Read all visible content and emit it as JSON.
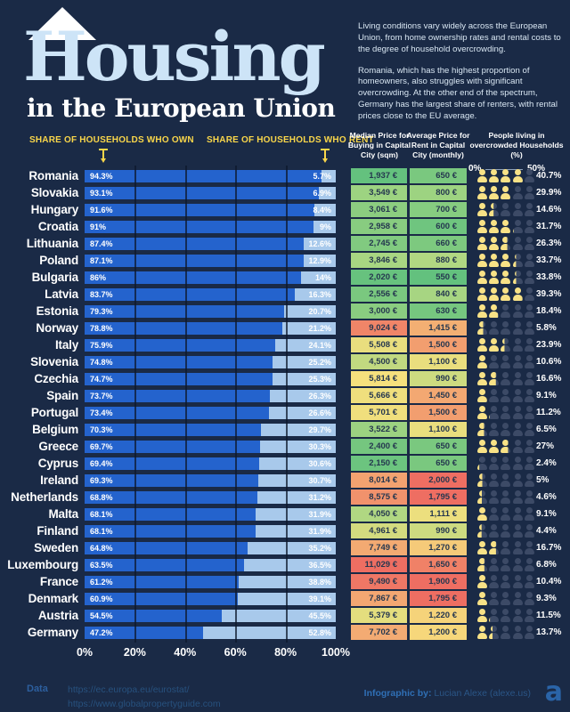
{
  "title": {
    "main": "Housing",
    "subtitle": "in the European Union"
  },
  "intro": {
    "p1": "Living conditions vary widely across the European Union, from home ownership rates and rental costs to the degree of household overcrowding.",
    "p2": "Romania, which has the highest proportion of homeowners, also struggles with significant overcrowding. At the other end of the spectrum, Germany has the largest share of renters, with rental prices close to the EU average."
  },
  "share_labels": {
    "own_pre": "SHARE OF HOUSEHOLDS WHO ",
    "own_bold": "OWN",
    "rent_pre": "SHARE OF HOUSEHOLDS WHO ",
    "rent_bold": "RENT"
  },
  "columns": {
    "buy": {
      "pre": "Median Price for ",
      "bold": "Buying",
      "post": " in Capital City (sqm)"
    },
    "rent": {
      "pre": "Average Price for ",
      "bold": "Rent",
      "post": " in Capital City (monthly)"
    },
    "overcrowded": {
      "label": "People living in overcrowded Households (%)",
      "scale_min": "0%",
      "scale_max": "50%"
    }
  },
  "chart_data": {
    "type": "bar",
    "orientation": "horizontal",
    "stacked": true,
    "series_labels": [
      "Own",
      "Rent"
    ],
    "x_ticks": [
      "0%",
      "20%",
      "40%",
      "60%",
      "80%",
      "100%"
    ],
    "xlim": [
      0,
      100
    ],
    "overcrowded_scale": [
      0,
      50
    ],
    "countries": [
      {
        "name": "Romania",
        "own": 94.3,
        "own_label": "94.3%",
        "rent": 5.7,
        "rent_label": "5.7%",
        "buy": "1,937 €",
        "buy_value": 1937,
        "rent_price": "650 €",
        "rent_price_value": 650,
        "overcrowded": 40.7,
        "overcrowded_label": "40.7%"
      },
      {
        "name": "Slovakia",
        "own": 93.1,
        "own_label": "93.1%",
        "rent": 6.9,
        "rent_label": "6.9%",
        "buy": "3,549 €",
        "buy_value": 3549,
        "rent_price": "800 €",
        "rent_price_value": 800,
        "overcrowded": 29.9,
        "overcrowded_label": "29.9%"
      },
      {
        "name": "Hungary",
        "own": 91.6,
        "own_label": "91.6%",
        "rent": 8.4,
        "rent_label": "8.4%",
        "buy": "3,061 €",
        "buy_value": 3061,
        "rent_price": "700 €",
        "rent_price_value": 700,
        "overcrowded": 14.6,
        "overcrowded_label": "14.6%"
      },
      {
        "name": "Croatia",
        "own": 91,
        "own_label": "91%",
        "rent": 9,
        "rent_label": "9%",
        "buy": "2,958 €",
        "buy_value": 2958,
        "rent_price": "600 €",
        "rent_price_value": 600,
        "overcrowded": 31.7,
        "overcrowded_label": "31.7%"
      },
      {
        "name": "Lithuania",
        "own": 87.4,
        "own_label": "87.4%",
        "rent": 12.6,
        "rent_label": "12.6%",
        "buy": "2,745 €",
        "buy_value": 2745,
        "rent_price": "660 €",
        "rent_price_value": 660,
        "overcrowded": 26.3,
        "overcrowded_label": "26.3%"
      },
      {
        "name": "Poland",
        "own": 87.1,
        "own_label": "87.1%",
        "rent": 12.9,
        "rent_label": "12.9%",
        "buy": "3,846 €",
        "buy_value": 3846,
        "rent_price": "880 €",
        "rent_price_value": 880,
        "overcrowded": 33.7,
        "overcrowded_label": "33.7%"
      },
      {
        "name": "Bulgaria",
        "own": 86,
        "own_label": "86%",
        "rent": 14,
        "rent_label": "14%",
        "buy": "2,020 €",
        "buy_value": 2020,
        "rent_price": "550 €",
        "rent_price_value": 550,
        "overcrowded": 33.8,
        "overcrowded_label": "33.8%"
      },
      {
        "name": "Latvia",
        "own": 83.7,
        "own_label": "83.7%",
        "rent": 16.3,
        "rent_label": "16.3%",
        "buy": "2,556 €",
        "buy_value": 2556,
        "rent_price": "840 €",
        "rent_price_value": 840,
        "overcrowded": 39.3,
        "overcrowded_label": "39.3%"
      },
      {
        "name": "Estonia",
        "own": 79.3,
        "own_label": "79.3%",
        "rent": 20.7,
        "rent_label": "20.7%",
        "buy": "3,000 €",
        "buy_value": 3000,
        "rent_price": "630 €",
        "rent_price_value": 630,
        "overcrowded": 18.4,
        "overcrowded_label": "18.4%"
      },
      {
        "name": "Norway",
        "own": 78.8,
        "own_label": "78.8%",
        "rent": 21.2,
        "rent_label": "21.2%",
        "buy": "9,024 €",
        "buy_value": 9024,
        "rent_price": "1,415 €",
        "rent_price_value": 1415,
        "overcrowded": 5.8,
        "overcrowded_label": "5.8%"
      },
      {
        "name": "Italy",
        "own": 75.9,
        "own_label": "75.9%",
        "rent": 24.1,
        "rent_label": "24.1%",
        "buy": "5,508 €",
        "buy_value": 5508,
        "rent_price": "1,500 €",
        "rent_price_value": 1500,
        "overcrowded": 23.9,
        "overcrowded_label": "23.9%"
      },
      {
        "name": "Slovenia",
        "own": 74.8,
        "own_label": "74.8%",
        "rent": 25.2,
        "rent_label": "25.2%",
        "buy": "4,500 €",
        "buy_value": 4500,
        "rent_price": "1,100 €",
        "rent_price_value": 1100,
        "overcrowded": 10.6,
        "overcrowded_label": "10.6%"
      },
      {
        "name": "Czechia",
        "own": 74.7,
        "own_label": "74.7%",
        "rent": 25.3,
        "rent_label": "25.3%",
        "buy": "5,814 €",
        "buy_value": 5814,
        "rent_price": "990 €",
        "rent_price_value": 990,
        "overcrowded": 16.6,
        "overcrowded_label": "16.6%"
      },
      {
        "name": "Spain",
        "own": 73.7,
        "own_label": "73.7%",
        "rent": 26.3,
        "rent_label": "26.3%",
        "buy": "5,666 €",
        "buy_value": 5666,
        "rent_price": "1,450 €",
        "rent_price_value": 1450,
        "overcrowded": 9.1,
        "overcrowded_label": "9.1%"
      },
      {
        "name": "Portugal",
        "own": 73.4,
        "own_label": "73.4%",
        "rent": 26.6,
        "rent_label": "26.6%",
        "buy": "5,701 €",
        "buy_value": 5701,
        "rent_price": "1,500 €",
        "rent_price_value": 1500,
        "overcrowded": 11.2,
        "overcrowded_label": "11.2%"
      },
      {
        "name": "Belgium",
        "own": 70.3,
        "own_label": "70.3%",
        "rent": 29.7,
        "rent_label": "29.7%",
        "buy": "3,522 €",
        "buy_value": 3522,
        "rent_price": "1,100 €",
        "rent_price_value": 1100,
        "overcrowded": 6.5,
        "overcrowded_label": "6.5%"
      },
      {
        "name": "Greece",
        "own": 69.7,
        "own_label": "69.7%",
        "rent": 30.3,
        "rent_label": "30.3%",
        "buy": "2,400 €",
        "buy_value": 2400,
        "rent_price": "650 €",
        "rent_price_value": 650,
        "overcrowded": 27,
        "overcrowded_label": "27%"
      },
      {
        "name": "Cyprus",
        "own": 69.4,
        "own_label": "69.4%",
        "rent": 30.6,
        "rent_label": "30.6%",
        "buy": "2,150 €",
        "buy_value": 2150,
        "rent_price": "650 €",
        "rent_price_value": 650,
        "overcrowded": 2.4,
        "overcrowded_label": "2.4%"
      },
      {
        "name": "Ireland",
        "own": 69.3,
        "own_label": "69.3%",
        "rent": 30.7,
        "rent_label": "30.7%",
        "buy": "8,014 €",
        "buy_value": 8014,
        "rent_price": "2,000 €",
        "rent_price_value": 2000,
        "overcrowded": 5,
        "overcrowded_label": "5%"
      },
      {
        "name": "Netherlands",
        "own": 68.8,
        "own_label": "68.8%",
        "rent": 31.2,
        "rent_label": "31.2%",
        "buy": "8,575 €",
        "buy_value": 8575,
        "rent_price": "1,795 €",
        "rent_price_value": 1795,
        "overcrowded": 4.6,
        "overcrowded_label": "4.6%"
      },
      {
        "name": "Malta",
        "own": 68.1,
        "own_label": "68.1%",
        "rent": 31.9,
        "rent_label": "31.9%",
        "buy": "4,050 €",
        "buy_value": 4050,
        "rent_price": "1,111 €",
        "rent_price_value": 1111,
        "overcrowded": 9.1,
        "overcrowded_label": "9.1%"
      },
      {
        "name": "Finland",
        "own": 68.1,
        "own_label": "68.1%",
        "rent": 31.9,
        "rent_label": "31.9%",
        "buy": "4,961 €",
        "buy_value": 4961,
        "rent_price": "990 €",
        "rent_price_value": 990,
        "overcrowded": 4.4,
        "overcrowded_label": "4.4%"
      },
      {
        "name": "Sweden",
        "own": 64.8,
        "own_label": "64.8%",
        "rent": 35.2,
        "rent_label": "35.2%",
        "buy": "7,749 €",
        "buy_value": 7749,
        "rent_price": "1,270 €",
        "rent_price_value": 1270,
        "overcrowded": 16.7,
        "overcrowded_label": "16.7%"
      },
      {
        "name": "Luxembourg",
        "own": 63.5,
        "own_label": "63.5%",
        "rent": 36.5,
        "rent_label": "36.5%",
        "buy": "11,029 €",
        "buy_value": 11029,
        "rent_price": "1,650 €",
        "rent_price_value": 1650,
        "overcrowded": 6.8,
        "overcrowded_label": "6.8%"
      },
      {
        "name": "France",
        "own": 61.2,
        "own_label": "61.2%",
        "rent": 38.8,
        "rent_label": "38.8%",
        "buy": "9,490 €",
        "buy_value": 9490,
        "rent_price": "1,900 €",
        "rent_price_value": 1900,
        "overcrowded": 10.4,
        "overcrowded_label": "10.4%"
      },
      {
        "name": "Denmark",
        "own": 60.9,
        "own_label": "60.9%",
        "rent": 39.1,
        "rent_label": "39.1%",
        "buy": "7,867 €",
        "buy_value": 7867,
        "rent_price": "1,795 €",
        "rent_price_value": 1795,
        "overcrowded": 9.3,
        "overcrowded_label": "9.3%"
      },
      {
        "name": "Austria",
        "own": 54.5,
        "own_label": "54.5%",
        "rent": 45.5,
        "rent_label": "45.5%",
        "buy": "5,379 €",
        "buy_value": 5379,
        "rent_price": "1,220 €",
        "rent_price_value": 1220,
        "overcrowded": 11.5,
        "overcrowded_label": "11.5%"
      },
      {
        "name": "Germany",
        "own": 47.2,
        "own_label": "47.2%",
        "rent": 52.8,
        "rent_label": "52.8%",
        "buy": "7,702 €",
        "buy_value": 7702,
        "rent_price": "1,200 €",
        "rent_price_value": 1200,
        "overcrowded": 13.7,
        "overcrowded_label": "13.7%"
      }
    ]
  },
  "heat_scale": {
    "stops": [
      "#63c17e",
      "#a9d682",
      "#f6e07d",
      "#f3a872",
      "#ee6e62"
    ],
    "buy_min": 1900,
    "buy_max": 9800,
    "rent_min": 550,
    "rent_max": 1750
  },
  "colors": {
    "background": "#1a2a46",
    "own_bar": "#2463cd",
    "rent_bar": "#a8c9eb",
    "accent_yellow": "#f9d64a",
    "title": "#cde4f7",
    "icon_filled": "#f8e286",
    "icon_empty": "#3c4a66"
  },
  "footer": {
    "data_label": "Data",
    "sources": [
      "https://ec.europa.eu/eurostat/",
      "https://www.globalpropertyguide.com"
    ],
    "credit_label": "Infographic by:",
    "credit_name": " Lucian Alexe (alexe.us)",
    "logo": "a"
  }
}
